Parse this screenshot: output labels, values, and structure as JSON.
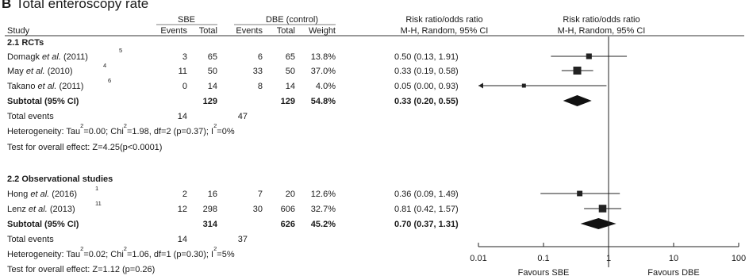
{
  "panel_letter": "B",
  "title": "Total enteroscopy rate",
  "headers": {
    "sbe": "SBE",
    "dbe": "DBE (control)",
    "study": "Study",
    "events": "Events",
    "total": "Total",
    "weight": "Weight",
    "effect_title": "Risk ratio/odds ratio",
    "effect_method": "M-H, Random, 95% CI"
  },
  "chart_data": {
    "type": "forest",
    "x_scale": "log",
    "xlim": [
      0.01,
      100
    ],
    "ticks": [
      {
        "value": 0.01,
        "label": "0.01"
      },
      {
        "value": 0.1,
        "label": "0.1"
      },
      {
        "value": 1,
        "label": "1"
      },
      {
        "value": 10,
        "label": "10"
      },
      {
        "value": 100,
        "label": "100"
      }
    ],
    "favours_left": "Favours SBE",
    "favours_right": "Favours DBE",
    "groups": [
      {
        "title": "2.1 RCTs",
        "studies": [
          {
            "name": "Domagk",
            "year": "(2011)",
            "ref": "5",
            "sbe_events": "3",
            "sbe_total": "65",
            "dbe_events": "6",
            "dbe_total": "65",
            "weight": "13.8%",
            "ci_text": "0.50 (0.13, 1.91)",
            "est": 0.5,
            "lo": 0.13,
            "hi": 1.91
          },
          {
            "name": "May",
            "year": "(2010)",
            "ref": "4",
            "sbe_events": "11",
            "sbe_total": "50",
            "dbe_events": "33",
            "dbe_total": "50",
            "weight": "37.0%",
            "ci_text": "0.33 (0.19, 0.58)",
            "est": 0.33,
            "lo": 0.19,
            "hi": 0.58
          },
          {
            "name": "Takano",
            "year": "(2011)",
            "ref": "6",
            "sbe_events": "0",
            "sbe_total": "14",
            "dbe_events": "8",
            "dbe_total": "14",
            "weight": "4.0%",
            "ci_text": "0.05 (0.00, 0.93)",
            "est": 0.05,
            "lo": 0.0,
            "hi": 0.93
          }
        ],
        "subtotal": {
          "label": "Subtotal (95% CI)",
          "sbe_total": "129",
          "dbe_total": "129",
          "weight": "54.8%",
          "ci_text": "0.33 (0.20, 0.55)",
          "est": 0.33,
          "lo": 0.2,
          "hi": 0.55
        },
        "total_events": {
          "label": "Total events",
          "sbe": "14",
          "dbe": "47"
        },
        "heterogeneity": {
          "label": "Heterogeneity: Tau",
          "tau2": "=0.00; Chi",
          "chi2": "=1.98, df=2 (p=0.37); I",
          "i2": "=0%"
        },
        "overall": "Test for overall effect: Z=4.25(p<0.0001)"
      },
      {
        "title": "2.2 Observational studies",
        "studies": [
          {
            "name": "Hong",
            "year": "(2016)",
            "ref": "1",
            "sbe_events": "2",
            "sbe_total": "16",
            "dbe_events": "7",
            "dbe_total": "20",
            "weight": "12.6%",
            "ci_text": "0.36 (0.09, 1.49)",
            "est": 0.36,
            "lo": 0.09,
            "hi": 1.49
          },
          {
            "name": "Lenz",
            "year": "(2013)",
            "ref": "11",
            "sbe_events": "12",
            "sbe_total": "298",
            "dbe_events": "30",
            "dbe_total": "606",
            "weight": "32.7%",
            "ci_text": "0.81 (0.42, 1.57)",
            "est": 0.81,
            "lo": 0.42,
            "hi": 1.57
          }
        ],
        "subtotal": {
          "label": "Subtotal (95% CI)",
          "sbe_total": "314",
          "dbe_total": "626",
          "weight": "45.2%",
          "ci_text": "0.70 (0.37, 1.31)",
          "est": 0.7,
          "lo": 0.37,
          "hi": 1.31
        },
        "total_events": {
          "label": "Total events",
          "sbe": "14",
          "dbe": "37"
        },
        "heterogeneity": {
          "label": "Heterogeneity: Tau",
          "tau2": "=0.02; Chi",
          "chi2": "=1.06, df=1 (p=0.30); I",
          "i2": "=5%"
        },
        "overall": "Test for overall effect: Z=1.12 (p=0.26)"
      }
    ]
  }
}
